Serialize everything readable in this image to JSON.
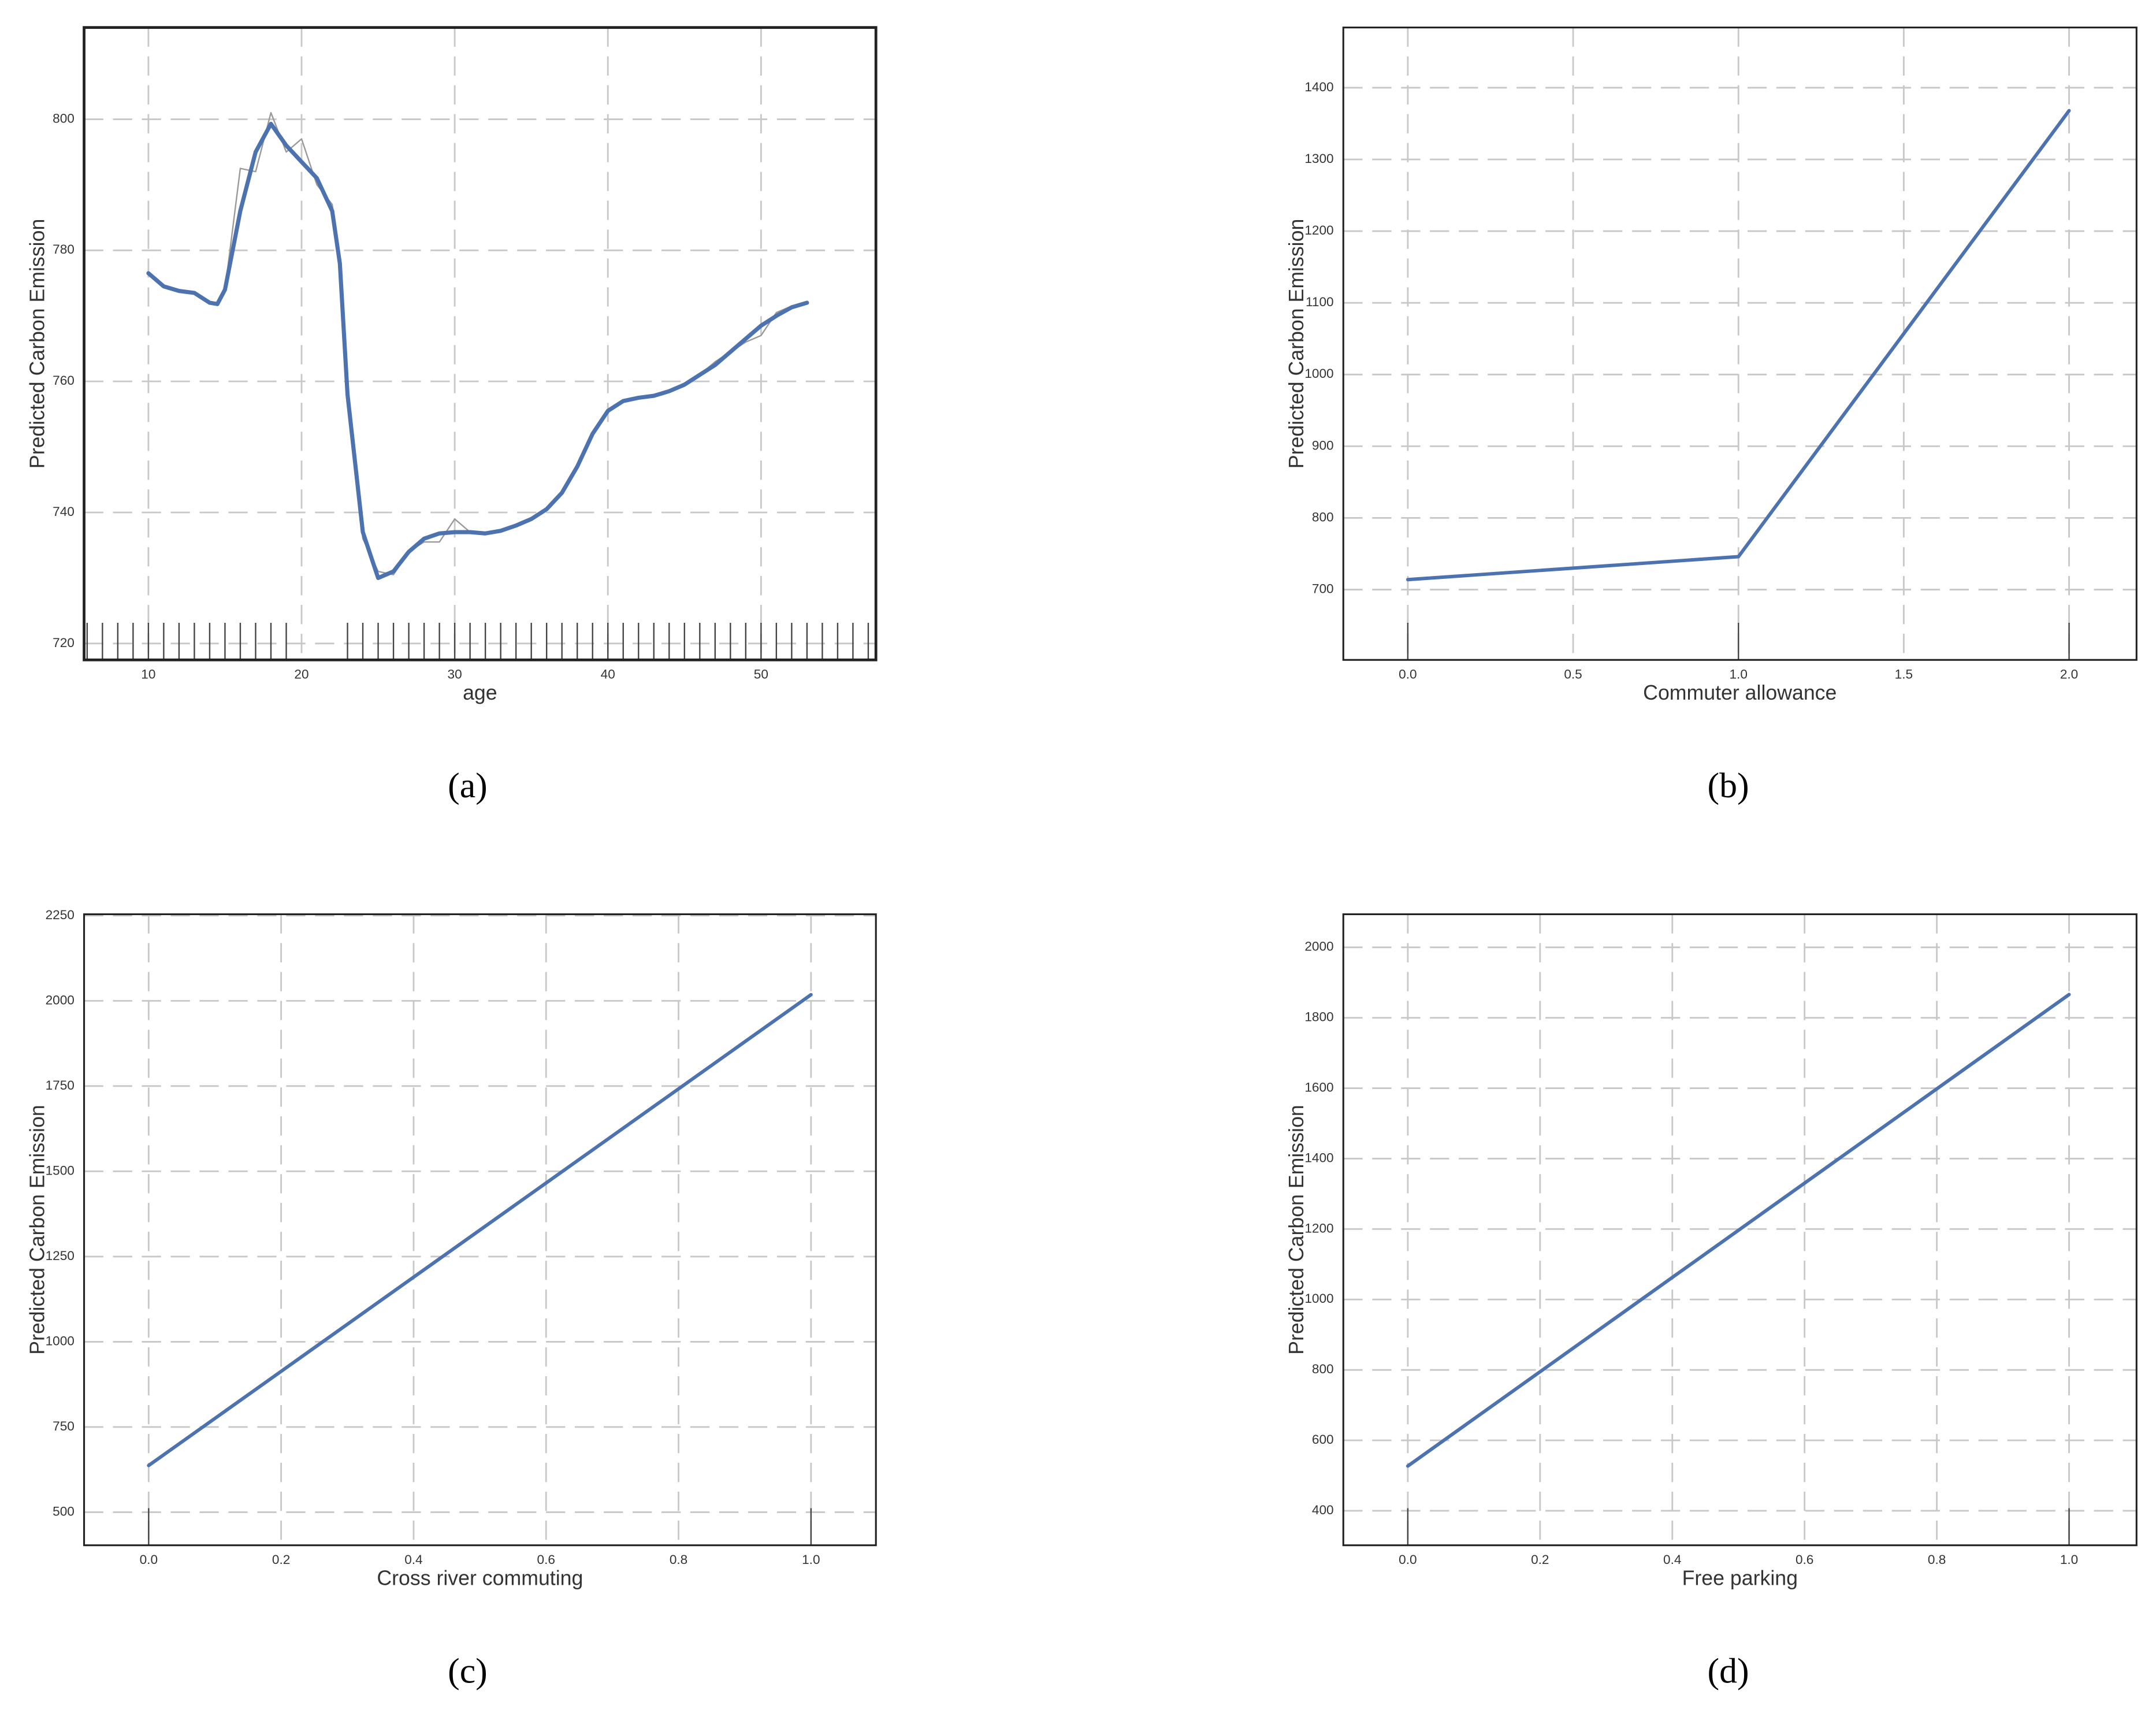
{
  "chart_data": [
    {
      "type": "line",
      "caption": "(a)",
      "xlabel": "age",
      "ylabel": "Predicted Carbon Emission",
      "xlim": [
        5.8,
        57.5
      ],
      "xticks": [
        10,
        20,
        30,
        40,
        50
      ],
      "ylim": [
        717.5,
        814
      ],
      "yticks": [
        720,
        740,
        760,
        780,
        800
      ],
      "grid": true,
      "x": [
        10,
        11,
        12,
        13,
        14,
        14.5,
        15,
        16,
        17,
        18,
        19,
        20,
        21,
        22,
        22.5,
        23,
        24,
        25,
        26,
        27,
        28,
        29,
        30,
        31,
        32,
        33,
        34,
        35,
        36,
        37,
        38,
        39,
        40,
        41,
        42,
        43,
        44,
        45,
        46,
        47,
        48,
        49,
        50,
        51,
        52,
        53
      ],
      "series": [
        {
          "color": "#4c72b0",
          "values": [
            776.5,
            774.5,
            773.8,
            773.5,
            772,
            771.8,
            774,
            786,
            795,
            799.3,
            796,
            793.5,
            791,
            786,
            778,
            758,
            737,
            730,
            731,
            734,
            736,
            736.8,
            737,
            737,
            736.8,
            737.2,
            738,
            739,
            740.5,
            743,
            747,
            752,
            755.5,
            757,
            757.5,
            757.8,
            758.5,
            759.5,
            761,
            762.5,
            764.5,
            766.5,
            768.5,
            770,
            771.3,
            772
          ]
        },
        {
          "color": "#999999",
          "values": [
            776.5,
            774.5,
            773.8,
            773.5,
            772,
            771.8,
            774,
            792.5,
            792,
            801,
            795,
            797,
            790,
            787,
            779,
            758,
            736,
            731,
            730.5,
            734,
            735.5,
            735.5,
            739,
            737,
            736.8,
            737.2,
            738,
            739,
            740.5,
            743,
            747,
            752,
            755.5,
            757,
            757.5,
            757.8,
            758.5,
            759.5,
            761,
            763,
            764.5,
            766,
            767,
            770.5,
            771.5,
            772
          ]
        }
      ],
      "rug": [
        6,
        7,
        8,
        9,
        10,
        11,
        12,
        13,
        14,
        15,
        16,
        17,
        18,
        19,
        23,
        24,
        25,
        26,
        27,
        28,
        29,
        30,
        31,
        32,
        33,
        34,
        35,
        36,
        37,
        38,
        39,
        40,
        41,
        42,
        43,
        44,
        45,
        46,
        47,
        48,
        49,
        50,
        51,
        52,
        53,
        54,
        55,
        56,
        57
      ]
    },
    {
      "type": "line",
      "caption": "(b)",
      "xlabel": "Commuter allowance",
      "ylabel": "Predicted Carbon Emission",
      "xlim": [
        -0.195,
        2.204
      ],
      "xticks": [
        {
          "value": 0,
          "label": "0.0"
        },
        0.5,
        {
          "value": 1,
          "label": "1.0"
        },
        1.5,
        {
          "value": 2,
          "label": "2.0"
        }
      ],
      "ylim": [
        602,
        1484
      ],
      "yticks": [
        700,
        800,
        900,
        1000,
        1100,
        1200,
        1300,
        1400
      ],
      "grid": true,
      "x": [
        0,
        1,
        2
      ],
      "series": [
        {
          "color": "#4c72b0",
          "values": [
            714,
            746,
            1368
          ]
        }
      ],
      "rug": [
        0,
        1,
        2
      ]
    },
    {
      "type": "line",
      "caption": "(c)",
      "xlabel": "Cross river commuting",
      "ylabel": "Predicted Carbon Emission",
      "xlim": [
        -0.0975,
        1.098
      ],
      "xticks": [
        {
          "value": 0,
          "label": "0.0"
        },
        0.2,
        0.4,
        0.6,
        0.8,
        {
          "value": 1,
          "label": "1.0"
        }
      ],
      "ylim": [
        403,
        2254
      ],
      "yticks": [
        500,
        750,
        1000,
        1250,
        1500,
        1750,
        2000,
        2250
      ],
      "grid": true,
      "x": [
        0,
        1
      ],
      "series": [
        {
          "color": "#4c72b0",
          "values": [
            637,
            2018
          ]
        }
      ],
      "rug": [
        0,
        1
      ]
    },
    {
      "type": "line",
      "caption": "(d)",
      "xlabel": "Free parking",
      "ylabel": "Predicted Carbon Emission",
      "xlim": [
        -0.0975,
        1.102
      ],
      "xticks": [
        {
          "value": 0,
          "label": "0.0"
        },
        0.2,
        0.4,
        0.6,
        0.8,
        {
          "value": 1,
          "label": "1.0"
        }
      ],
      "ylim": [
        302,
        2094
      ],
      "yticks": [
        400,
        600,
        800,
        1000,
        1200,
        1400,
        1600,
        1800,
        2000
      ],
      "grid": true,
      "x": [
        0,
        1
      ],
      "series": [
        {
          "color": "#4c72b0",
          "values": [
            527,
            1866
          ]
        }
      ],
      "rug": [
        0,
        1
      ]
    }
  ]
}
